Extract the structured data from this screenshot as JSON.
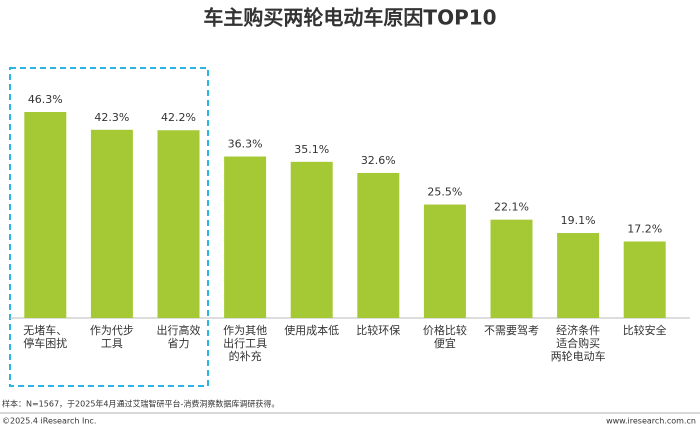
{
  "chart_data": {
    "type": "bar",
    "title": "车主购买两轮电动车原因TOP10",
    "categories": [
      [
        "无堵车、",
        "停车困扰"
      ],
      [
        "作为代步",
        "工具"
      ],
      [
        "出行高效",
        "省力"
      ],
      [
        "作为其他",
        "出行工具",
        "的补充"
      ],
      [
        "使用成本低"
      ],
      [
        "比较环保"
      ],
      [
        "价格比较",
        "便宜"
      ],
      [
        "不需要驾考"
      ],
      [
        "经济条件",
        "适合购买",
        "两轮电动车"
      ],
      [
        "比较安全"
      ]
    ],
    "values": [
      46.3,
      42.3,
      42.2,
      36.3,
      35.1,
      32.6,
      25.5,
      22.1,
      19.1,
      17.2
    ],
    "value_labels": [
      "46.3%",
      "42.3%",
      "42.2%",
      "36.3%",
      "35.1%",
      "32.6%",
      "25.5%",
      "22.1%",
      "19.1%",
      "17.2%"
    ],
    "color": "#a5c934",
    "note": "样本：N=1567，于2025年4月通过艾瑞智研平台-消费洞察数据库调研获得。",
    "copyright": "©2025.4 iResearch Inc.",
    "website": "www.iresearch.com.cn"
  }
}
